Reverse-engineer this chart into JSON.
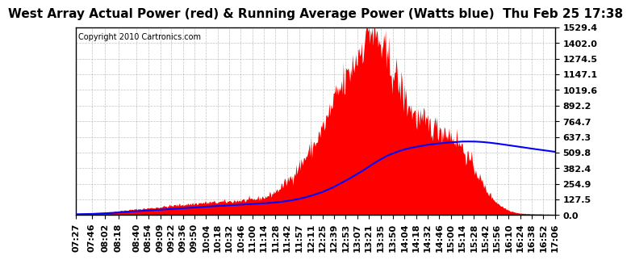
{
  "title": "West Array Actual Power (red) & Running Average Power (Watts blue)  Thu Feb 25 17:38",
  "copyright": "Copyright 2010 Cartronics.com",
  "yticks": [
    0.0,
    127.5,
    254.9,
    382.4,
    509.8,
    637.3,
    764.7,
    892.2,
    1019.6,
    1147.1,
    1274.5,
    1402.0,
    1529.4
  ],
  "ymax": 1529.4,
  "ymin": 0.0,
  "bg_color": "#ffffff",
  "grid_color": "#aaaaaa",
  "actual_color": "#ff0000",
  "avg_color": "#0000ff",
  "title_fontsize": 11,
  "copyright_fontsize": 7,
  "tick_fontsize": 8
}
